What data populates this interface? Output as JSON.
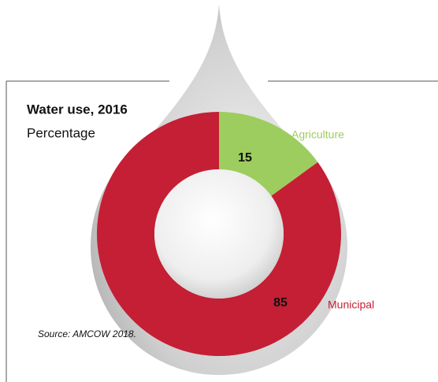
{
  "chart_data": {
    "type": "donut",
    "title": "Water use, 2016",
    "subtitle": "Percentage",
    "source": "Source: AMCOW 2018.",
    "categories": [
      "Agriculture",
      "Municipal"
    ],
    "values": [
      15,
      85
    ],
    "colors": [
      "#9dcd5e",
      "#c41f35"
    ]
  }
}
